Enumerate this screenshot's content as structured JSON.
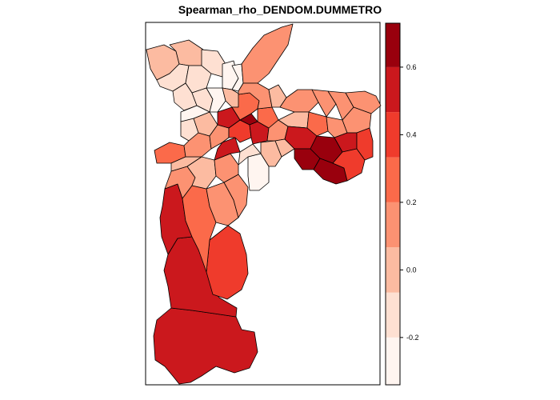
{
  "title": "Spearman_rho_DENDOM.DUMMETRO",
  "legend": {
    "tick_labels": [
      "0.6",
      "0.4",
      "0.2",
      "0.0",
      "-0.2"
    ],
    "tick_values": [
      0.6,
      0.4,
      0.2,
      0.0,
      -0.2
    ],
    "range": [
      -0.34,
      0.73
    ],
    "bins": [
      {
        "from": -0.34,
        "to": -0.2,
        "color": "#fff5f0"
      },
      {
        "from": -0.2,
        "to": -0.067,
        "color": "#fee0d2"
      },
      {
        "from": -0.067,
        "to": 0.067,
        "color": "#fcbba1"
      },
      {
        "from": 0.067,
        "to": 0.2,
        "color": "#fc9272"
      },
      {
        "from": 0.2,
        "to": 0.333,
        "color": "#fb6a4a"
      },
      {
        "from": 0.333,
        "to": 0.467,
        "color": "#ef3b2c"
      },
      {
        "from": 0.467,
        "to": 0.6,
        "color": "#cb181d"
      },
      {
        "from": 0.6,
        "to": 0.73,
        "color": "#99000d"
      }
    ]
  },
  "colors": {
    "frame": "#000000",
    "background": "#ffffff"
  }
}
